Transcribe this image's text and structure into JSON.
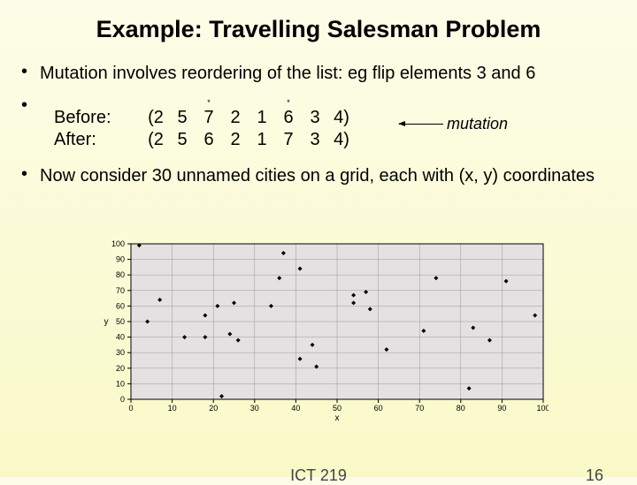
{
  "title": "Example: Travelling Salesman Problem",
  "bullets": {
    "b1": "Mutation involves reordering of the list: eg flip elements 3 and 6",
    "b3": "Now consider 30 unnamed cities on a grid, each with (x, y) coordinates"
  },
  "mutation": {
    "stars": [
      "",
      "",
      "*",
      "",
      "",
      "*",
      "",
      ""
    ],
    "before_label": "Before:",
    "after_label": "After:",
    "before": [
      "(2",
      "5",
      "7",
      "2",
      "1",
      "6",
      "3",
      "4)"
    ],
    "after": [
      "(2",
      "5",
      "6",
      "2",
      "1",
      "7",
      "3",
      "4)"
    ],
    "arrow_label": "mutation"
  },
  "chart": {
    "type": "scatter",
    "xlim": [
      0,
      100
    ],
    "ylim": [
      0,
      100
    ],
    "xtick_step": 10,
    "ytick_step": 10,
    "xlabel": "x",
    "ylabel": "y",
    "background_color": "#e3e1e1",
    "border_color": "#000000",
    "grid_color": "#9a9898",
    "tick_font_size": 9,
    "label_font_size": 10,
    "marker": "diamond",
    "marker_size": 5,
    "marker_color": "#000000",
    "points": [
      [
        2,
        99
      ],
      [
        4,
        50
      ],
      [
        7,
        64
      ],
      [
        13,
        40
      ],
      [
        18,
        54
      ],
      [
        18,
        40
      ],
      [
        21,
        60
      ],
      [
        22,
        2
      ],
      [
        24,
        42
      ],
      [
        25,
        62
      ],
      [
        26,
        38
      ],
      [
        34,
        60
      ],
      [
        36,
        78
      ],
      [
        37,
        94
      ],
      [
        41,
        84
      ],
      [
        41,
        26
      ],
      [
        44,
        35
      ],
      [
        45,
        21
      ],
      [
        54,
        62
      ],
      [
        54,
        67
      ],
      [
        57,
        69
      ],
      [
        58,
        58
      ],
      [
        62,
        32
      ],
      [
        71,
        44
      ],
      [
        74,
        78
      ],
      [
        82,
        7
      ],
      [
        83,
        46
      ],
      [
        87,
        38
      ],
      [
        91,
        76
      ],
      [
        98,
        54
      ]
    ]
  },
  "footer": {
    "course": "ICT 219",
    "page": "16"
  }
}
